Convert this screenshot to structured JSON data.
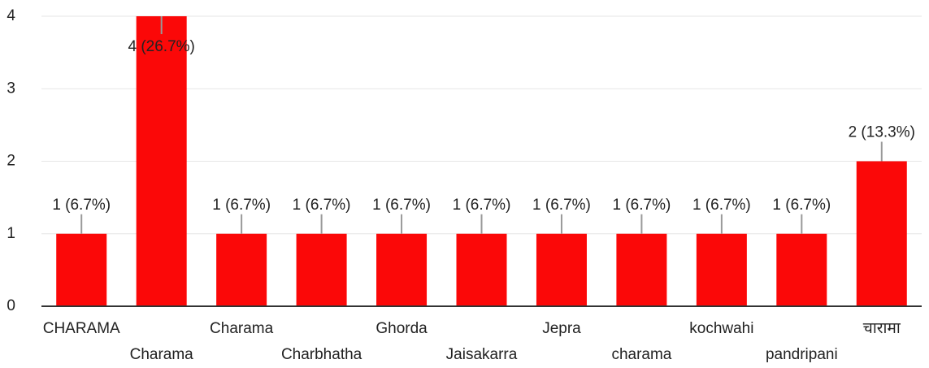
{
  "chart_data": {
    "type": "bar",
    "categories": [
      "CHARAMA",
      "Charama",
      "Charama",
      "Charbhatha",
      "Ghorda",
      "Jaisakarra",
      "Jepra",
      "charama",
      "kochwahi",
      "pandripani",
      "चारामा"
    ],
    "values": [
      1,
      4,
      1,
      1,
      1,
      1,
      1,
      1,
      1,
      1,
      2
    ],
    "value_labels": [
      "1 (6.7%)",
      "4 (26.7%)",
      "1 (6.7%)",
      "1 (6.7%)",
      "1 (6.7%)",
      "1 (6.7%)",
      "1 (6.7%)",
      "1 (6.7%)",
      "1 (6.7%)",
      "1 (6.7%)",
      "2 (13.3%)"
    ],
    "color": "#fb0808",
    "ylim": [
      0,
      4
    ],
    "yticks": [
      0,
      1,
      2,
      3,
      4
    ],
    "grid": true
  }
}
